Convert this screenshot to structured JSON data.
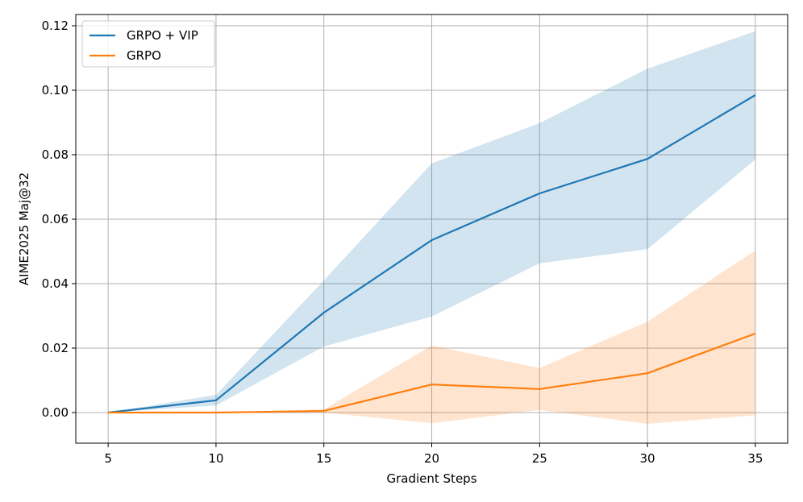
{
  "chart_data": {
    "type": "line",
    "title": "",
    "xlabel": "Gradient Steps",
    "ylabel": "AIME2025 Maj@32",
    "x": [
      5,
      10,
      15,
      20,
      25,
      30,
      35
    ],
    "xlim": [
      3.5,
      36.5
    ],
    "ylim": [
      -0.0095,
      0.1235
    ],
    "xticks": [
      5,
      10,
      15,
      20,
      25,
      30,
      35
    ],
    "xtick_labels": [
      "5",
      "10",
      "15",
      "20",
      "25",
      "30",
      "35"
    ],
    "yticks": [
      0.0,
      0.02,
      0.04,
      0.06,
      0.08,
      0.1,
      0.12
    ],
    "ytick_labels": [
      "0.00",
      "0.02",
      "0.04",
      "0.06",
      "0.08",
      "0.10",
      "0.12"
    ],
    "grid": true,
    "legend_position": "top-left",
    "series": [
      {
        "name": "GRPO + VIP",
        "color": "#1f77b4",
        "band_color": "#1f77b4",
        "values": [
          0.0,
          0.0038,
          0.031,
          0.0535,
          0.068,
          0.0787,
          0.0985
        ],
        "lower": [
          0.0,
          0.0022,
          0.0205,
          0.0298,
          0.0463,
          0.0507,
          0.0785
        ],
        "upper": [
          0.0,
          0.0055,
          0.041,
          0.0773,
          0.0898,
          0.1067,
          0.1183
        ]
      },
      {
        "name": "GRPO",
        "color": "#ff7f0e",
        "band_color": "#ff7f0e",
        "values": [
          0.0,
          0.0,
          0.0005,
          0.0087,
          0.0073,
          0.0122,
          0.0245
        ],
        "lower": [
          0.0,
          0.0,
          0.0,
          -0.0033,
          0.0008,
          -0.0035,
          -0.0008
        ],
        "upper": [
          0.0,
          0.0,
          0.001,
          0.0208,
          0.0138,
          0.0282,
          0.0503
        ]
      }
    ]
  }
}
